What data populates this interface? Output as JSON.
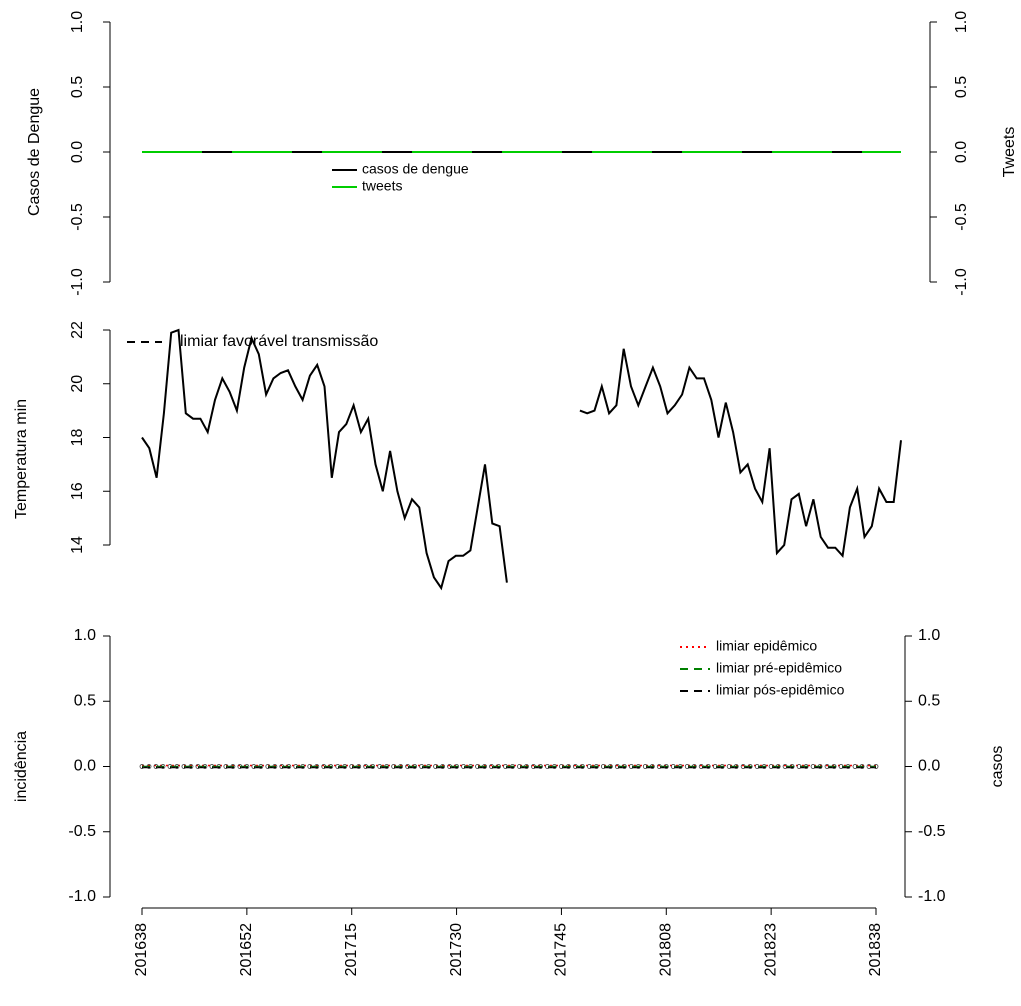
{
  "chart_data": [
    {
      "type": "line",
      "ylabel": "Casos de Dengue",
      "y2label": "Tweets",
      "ylim": [
        -1,
        1
      ],
      "yticks": [
        {
          "value": -1,
          "label": "-1.0"
        },
        {
          "value": -0.5,
          "label": "-0.5"
        },
        {
          "value": 0,
          "label": "0.0"
        },
        {
          "value": 0.5,
          "label": "0.5"
        },
        {
          "value": 1,
          "label": "1.0"
        }
      ],
      "y2lim": [
        -1,
        1
      ],
      "y2ticks": [
        {
          "value": -1,
          "label": "-1.0"
        },
        {
          "value": -0.5,
          "label": "-0.5"
        },
        {
          "value": 0,
          "label": "0.0"
        },
        {
          "value": 0.5,
          "label": "0.5"
        },
        {
          "value": 1,
          "label": "1.0"
        }
      ],
      "series": [
        {
          "name": "casos de dengue",
          "color": "#000000",
          "values": [
            0,
            0,
            0,
            0,
            0,
            0,
            0,
            0,
            0,
            0,
            0,
            0,
            0,
            0,
            0,
            0,
            0,
            0,
            0,
            0,
            0,
            0,
            0,
            0,
            0,
            0,
            0,
            0,
            0,
            0,
            0,
            0,
            0,
            0,
            0,
            0,
            0,
            0,
            0,
            0,
            0,
            0,
            0,
            0,
            0,
            0,
            0,
            0,
            0,
            0,
            0,
            0,
            0,
            0,
            0,
            0,
            0,
            0,
            0,
            0,
            0,
            0,
            0,
            0,
            0,
            0,
            0,
            0,
            0,
            0,
            0,
            0,
            0,
            0,
            0,
            0,
            0,
            0,
            0,
            0,
            0,
            0,
            0,
            0,
            0,
            0,
            0,
            0,
            0,
            0,
            0,
            0,
            0,
            0,
            0,
            0,
            0,
            0,
            0,
            0,
            0,
            0,
            0,
            0,
            0
          ]
        },
        {
          "name": "tweets",
          "color": "#00cd00",
          "axis": "y2",
          "values": [
            0,
            0,
            0,
            0,
            0,
            0,
            0,
            0,
            0,
            0,
            0,
            0,
            0,
            0,
            0,
            0,
            0,
            0,
            0,
            0,
            0,
            0,
            0,
            0,
            0,
            0,
            0,
            0,
            0,
            0,
            0,
            0,
            0,
            0,
            0,
            0,
            0,
            0,
            0,
            0,
            0,
            0,
            0,
            0,
            0,
            0,
            0,
            0,
            0,
            0,
            0,
            0,
            0,
            0,
            0,
            0,
            0,
            0,
            0,
            0,
            0,
            0,
            0,
            0,
            0,
            0,
            0,
            0,
            0,
            0,
            0,
            0,
            0,
            0,
            0,
            0,
            0,
            0,
            0,
            0,
            0,
            0,
            0,
            0,
            0,
            0,
            0,
            0,
            0,
            0,
            0,
            0,
            0,
            0,
            0,
            0,
            0,
            0,
            0,
            0,
            0,
            0,
            0,
            0,
            0
          ]
        }
      ]
    },
    {
      "type": "line",
      "ylabel": "Temperatura min",
      "ylim": [
        12.4,
        22
      ],
      "yticks": [
        14,
        16,
        18,
        20,
        22
      ],
      "color": "#000000",
      "legend_entries": [
        {
          "label": "limiar favorável transmissão",
          "color": "#000000",
          "dash": "8,6"
        }
      ],
      "values": [
        18.0,
        17.6,
        16.5,
        18.9,
        21.9,
        22.0,
        18.9,
        18.7,
        18.7,
        18.2,
        19.4,
        20.2,
        19.7,
        19.0,
        20.6,
        21.7,
        21.1,
        19.6,
        20.2,
        20.4,
        20.5,
        19.9,
        19.4,
        20.3,
        20.7,
        19.9,
        16.5,
        18.2,
        18.5,
        19.2,
        18.2,
        18.7,
        17.0,
        16.0,
        17.5,
        16.0,
        15.0,
        15.7,
        15.4,
        13.7,
        12.8,
        12.4,
        13.4,
        13.6,
        13.6,
        13.8,
        15.4,
        17.0,
        14.8,
        14.7,
        12.6,
        null,
        null,
        null,
        null,
        null,
        null,
        null,
        null,
        null,
        19.0,
        18.9,
        19.0,
        19.9,
        18.9,
        19.2,
        21.3,
        19.9,
        19.2,
        19.9,
        20.6,
        19.9,
        18.9,
        19.2,
        19.6,
        20.6,
        20.2,
        20.2,
        19.4,
        18.0,
        19.3,
        18.2,
        16.7,
        17.0,
        16.1,
        15.6,
        17.6,
        13.7,
        14.0,
        15.7,
        15.9,
        14.7,
        15.7,
        14.3,
        13.9,
        13.9,
        13.6,
        15.4,
        16.1,
        14.3,
        14.7,
        16.1,
        15.6,
        15.6,
        17.9
      ]
    },
    {
      "type": "line",
      "ylabel": "incidência",
      "y2label": "casos",
      "y2color": "#a9a9a9",
      "ylim": [
        -1,
        1
      ],
      "yticks": [
        {
          "value": -1,
          "label": "-1.0"
        },
        {
          "value": -0.5,
          "label": "-0.5"
        },
        {
          "value": 0,
          "label": "0.0"
        },
        {
          "value": 0.5,
          "label": "0.5"
        },
        {
          "value": 1,
          "label": "1.0"
        }
      ],
      "y2lim": [
        -1,
        1
      ],
      "y2ticks": [
        {
          "value": -1,
          "label": "-1.0"
        },
        {
          "value": -0.5,
          "label": "-0.5"
        },
        {
          "value": 0,
          "label": "0.0"
        },
        {
          "value": 0.5,
          "label": "0.5"
        },
        {
          "value": 1,
          "label": "1.0"
        }
      ],
      "categories": [
        "201638",
        null,
        null,
        null,
        null,
        null,
        null,
        null,
        null,
        null,
        null,
        null,
        null,
        null,
        null,
        "201652",
        null,
        null,
        null,
        null,
        null,
        null,
        null,
        null,
        null,
        null,
        null,
        null,
        null,
        null,
        "201715",
        null,
        null,
        null,
        null,
        null,
        null,
        null,
        null,
        null,
        null,
        null,
        null,
        null,
        null,
        "201730",
        null,
        null,
        null,
        null,
        null,
        null,
        null,
        null,
        null,
        null,
        null,
        null,
        null,
        null,
        "201745",
        null,
        null,
        null,
        null,
        null,
        null,
        null,
        null,
        null,
        null,
        null,
        null,
        null,
        null,
        "201808",
        null,
        null,
        null,
        null,
        null,
        null,
        null,
        null,
        null,
        null,
        null,
        null,
        null,
        null,
        "201823",
        null,
        null,
        null,
        null,
        null,
        null,
        null,
        null,
        null,
        null,
        null,
        null,
        null,
        null,
        "201838"
      ],
      "values": [
        0,
        0,
        0,
        0,
        0,
        0,
        0,
        0,
        0,
        0,
        0,
        0,
        0,
        0,
        0,
        0,
        0,
        0,
        0,
        0,
        0,
        0,
        0,
        0,
        0,
        0,
        0,
        0,
        0,
        0,
        0,
        0,
        0,
        0,
        0,
        0,
        0,
        0,
        0,
        0,
        0,
        0,
        0,
        0,
        0,
        0,
        0,
        0,
        0,
        0,
        0,
        0,
        0,
        0,
        0,
        0,
        0,
        0,
        0,
        0,
        0,
        0,
        0,
        0,
        0,
        0,
        0,
        0,
        0,
        0,
        0,
        0,
        0,
        0,
        0,
        0,
        0,
        0,
        0,
        0,
        0,
        0,
        0,
        0,
        0,
        0,
        0,
        0,
        0,
        0,
        0,
        0,
        0,
        0,
        0,
        0,
        0,
        0,
        0,
        0,
        0,
        0,
        0,
        0,
        0,
        0
      ],
      "thresholds": [
        {
          "name": "limiar epidêmico",
          "color": "#ff0000",
          "dash": "2,4",
          "value": 0
        },
        {
          "name": "limiar pré-epidêmico",
          "color": "#008000",
          "dash": "8,6",
          "value": 0
        },
        {
          "name": "limiar pós-epidêmico",
          "color": "#000000",
          "dash": "8,6",
          "value": 0
        }
      ]
    }
  ]
}
